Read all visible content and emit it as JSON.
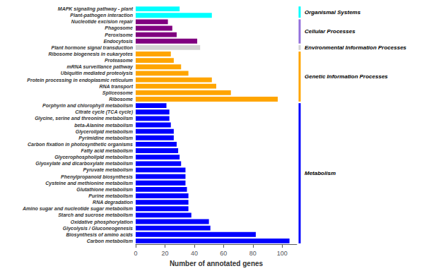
{
  "chart_data": {
    "type": "bar",
    "orientation": "horizontal",
    "categories": [
      "MAPK signaling pathway - plant",
      "Plant-pathogen interaction",
      "Nucleotide excision repair",
      "Phagosome",
      "Peroxisome",
      "Endocytosis",
      "Plant hormone signal transduction",
      "Ribosome biogenesis in eukaryotes",
      "Proteasome",
      "mRNA surveillance pathway",
      "Ubiquitin mediated proteolysis",
      "Protein processing in endoplasmic reticulum",
      "RNA transport",
      "Spliceosome",
      "Ribosome",
      "Porphyrin and chlorophyll metabolism",
      "Citrate cycle (TCA cycle)",
      "Glycine, serine and threonine metabolism",
      "beta-Alanine metabolism",
      "Glycerolipid metabolism",
      "Pyrimidine metabolism",
      "Carbon fixation in photosynthetic organisms",
      "Fatty acid metabolism",
      "Glycerophospholipid metabolism",
      "Glyoxylate and dicarboxylate metabolism",
      "Pyruvate metabolism",
      "Phenylpropanoid biosynthesis",
      "Cysteine and methionine metabolism",
      "Glutathione metabolism",
      "Purine metabolism",
      "RNA degradation",
      "Amino sugar and nucleotide sugar metabolism",
      "Starch and sucrose metabolism",
      "Oxidative phosphorylation",
      "Glycolysis / Gluconeogenesis",
      "Biosynthesis of amino acids",
      "Carbon metabolism"
    ],
    "values": [
      30,
      52,
      22,
      25,
      28,
      42,
      44,
      24,
      26,
      31,
      36,
      52,
      55,
      65,
      97,
      21,
      23,
      23,
      24,
      26,
      26,
      28,
      29,
      30,
      31,
      34,
      34,
      34,
      35,
      36,
      36,
      36,
      38,
      50,
      51,
      82,
      105
    ],
    "colors": [
      "cyan",
      "cyan",
      "purple",
      "purple",
      "purple",
      "purple",
      "lightgray",
      "orange",
      "orange",
      "orange",
      "orange",
      "orange",
      "orange",
      "orange",
      "orange",
      "blue",
      "blue",
      "blue",
      "blue",
      "blue",
      "blue",
      "blue",
      "blue",
      "blue",
      "blue",
      "blue",
      "blue",
      "blue",
      "blue",
      "blue",
      "blue",
      "blue",
      "blue",
      "blue",
      "blue",
      "blue",
      "blue"
    ],
    "xlabel": "Number of annotated genes",
    "xlim": [
      0,
      110
    ],
    "xticks": [
      0,
      20,
      40,
      60,
      80,
      100
    ],
    "grid": false,
    "annotations": [
      {
        "text": "Organismal Systems",
        "from": "MAPK signaling pathway - plant",
        "to": "Plant-pathogen interaction",
        "color": "cyan"
      },
      {
        "text": "Cellular Processes",
        "from": "Nucleotide excision repair",
        "to": "Endocytosis",
        "color": "mediumpurple"
      },
      {
        "text": "Environmental Information Processes",
        "from": "Plant hormone signal transduction",
        "to": "Plant hormone signal transduction",
        "color": "lightgray"
      },
      {
        "text": "Genetic Information Processes",
        "from": "Ribosome biogenesis in eukaryotes",
        "to": "Ribosome",
        "color": "orange"
      },
      {
        "text": "Metabolism",
        "from": "Porphyrin and chlorophyll metabolism",
        "to": "Carbon metabolism",
        "color": "blue"
      }
    ]
  }
}
